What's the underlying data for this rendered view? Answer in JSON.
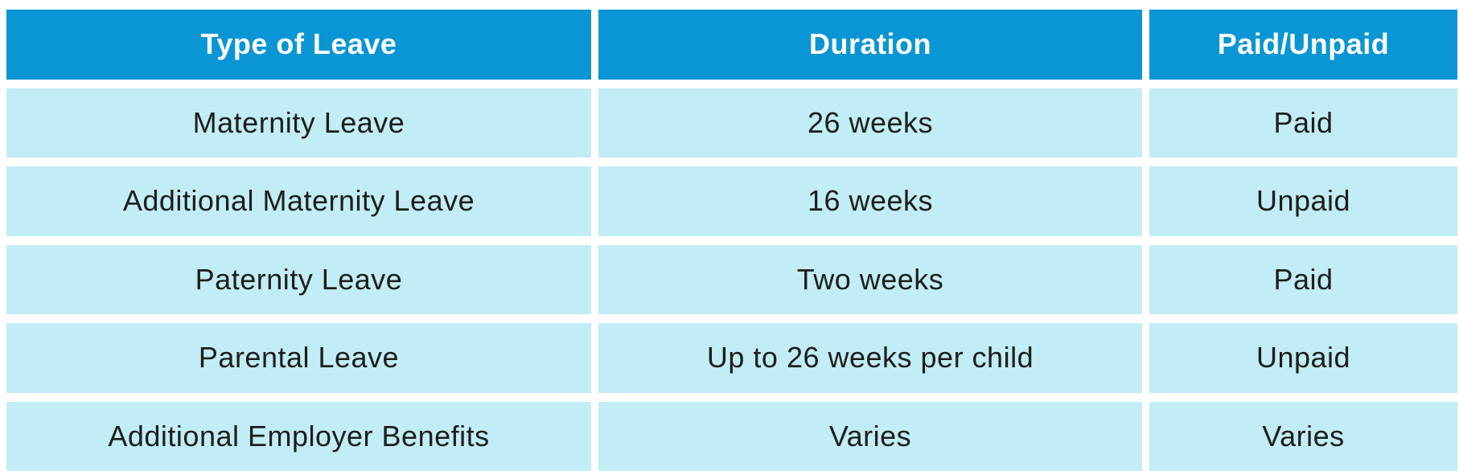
{
  "chart_data": {
    "type": "table",
    "title": "",
    "columns": [
      "Type of Leave",
      "Duration",
      "Paid/Unpaid"
    ],
    "rows": [
      [
        "Maternity Leave",
        "26 weeks",
        "Paid"
      ],
      [
        "Additional Maternity Leave",
        "16 weeks",
        "Unpaid"
      ],
      [
        "Paternity Leave",
        "Two weeks",
        "Paid"
      ],
      [
        "Parental Leave",
        "Up to 26 weeks per child",
        "Unpaid"
      ],
      [
        "Additional Employer Benefits",
        "Varies",
        "Varies"
      ]
    ],
    "layout_hints": {
      "header_position": "top",
      "cell_alignment": "center",
      "grid": "white gutters between all cells, no outer border"
    }
  },
  "colors": {
    "header_background": "#0a96d4",
    "header_text": "#ffffff",
    "row_background": "#c2edf6",
    "row_text": "#1d1d1b",
    "gutter": "#ffffff"
  }
}
